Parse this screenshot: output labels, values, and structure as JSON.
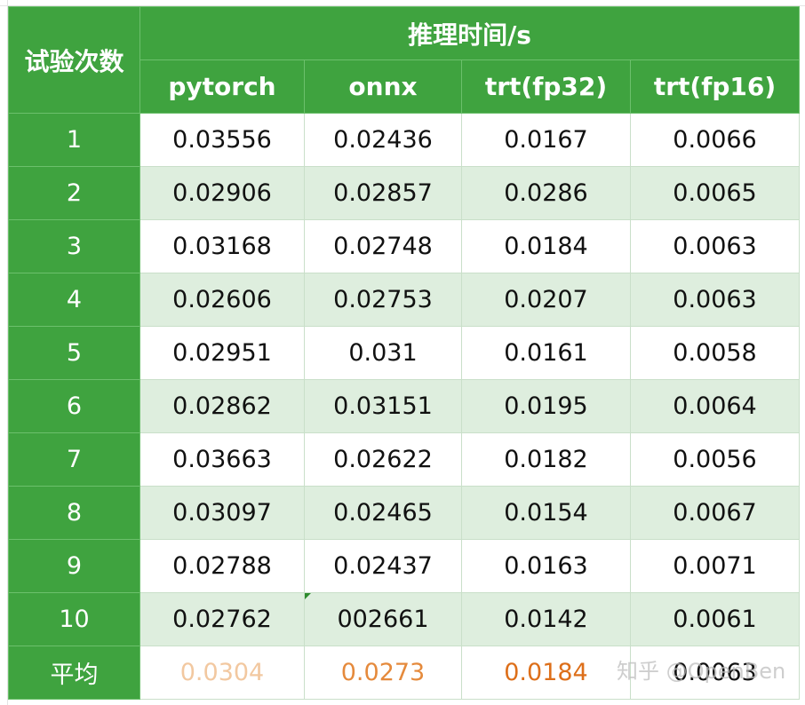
{
  "table": {
    "corner_header": "试验次数",
    "group_header": "推理时间/s",
    "columns": [
      "pytorch",
      "onnx",
      "trt(fp32)",
      "trt(fp16)"
    ],
    "rows": [
      {
        "trial": "1",
        "values": [
          "0.03556",
          "0.02436",
          "0.0167",
          "0.0066"
        ]
      },
      {
        "trial": "2",
        "values": [
          "0.02906",
          "0.02857",
          "0.0286",
          "0.0065"
        ]
      },
      {
        "trial": "3",
        "values": [
          "0.03168",
          "0.02748",
          "0.0184",
          "0.0063"
        ]
      },
      {
        "trial": "4",
        "values": [
          "0.02606",
          "0.02753",
          "0.0207",
          "0.0063"
        ]
      },
      {
        "trial": "5",
        "values": [
          "0.02951",
          "0.031",
          "0.0161",
          "0.0058"
        ]
      },
      {
        "trial": "6",
        "values": [
          "0.02862",
          "0.03151",
          "0.0195",
          "0.0064"
        ]
      },
      {
        "trial": "7",
        "values": [
          "0.03663",
          "0.02622",
          "0.0182",
          "0.0056"
        ]
      },
      {
        "trial": "8",
        "values": [
          "0.03097",
          "0.02465",
          "0.0154",
          "0.0067"
        ]
      },
      {
        "trial": "9",
        "values": [
          "0.02788",
          "0.02437",
          "0.0163",
          "0.0071"
        ]
      },
      {
        "trial": "10",
        "values": [
          "0.02762",
          "002661",
          "0.0142",
          "0.0061"
        ]
      }
    ],
    "average": {
      "label": "平均",
      "values": [
        "0.0304",
        "0.0273",
        "0.0184",
        "0.0063"
      ]
    }
  },
  "colors": {
    "header_green": "#3fa33f",
    "band_green": "#deeede",
    "avg_light": "#f2c8a0",
    "avg_mid": "#e58a3c",
    "avg_dark": "#dd6f1a"
  },
  "watermark": "知乎 @OpenBen"
}
